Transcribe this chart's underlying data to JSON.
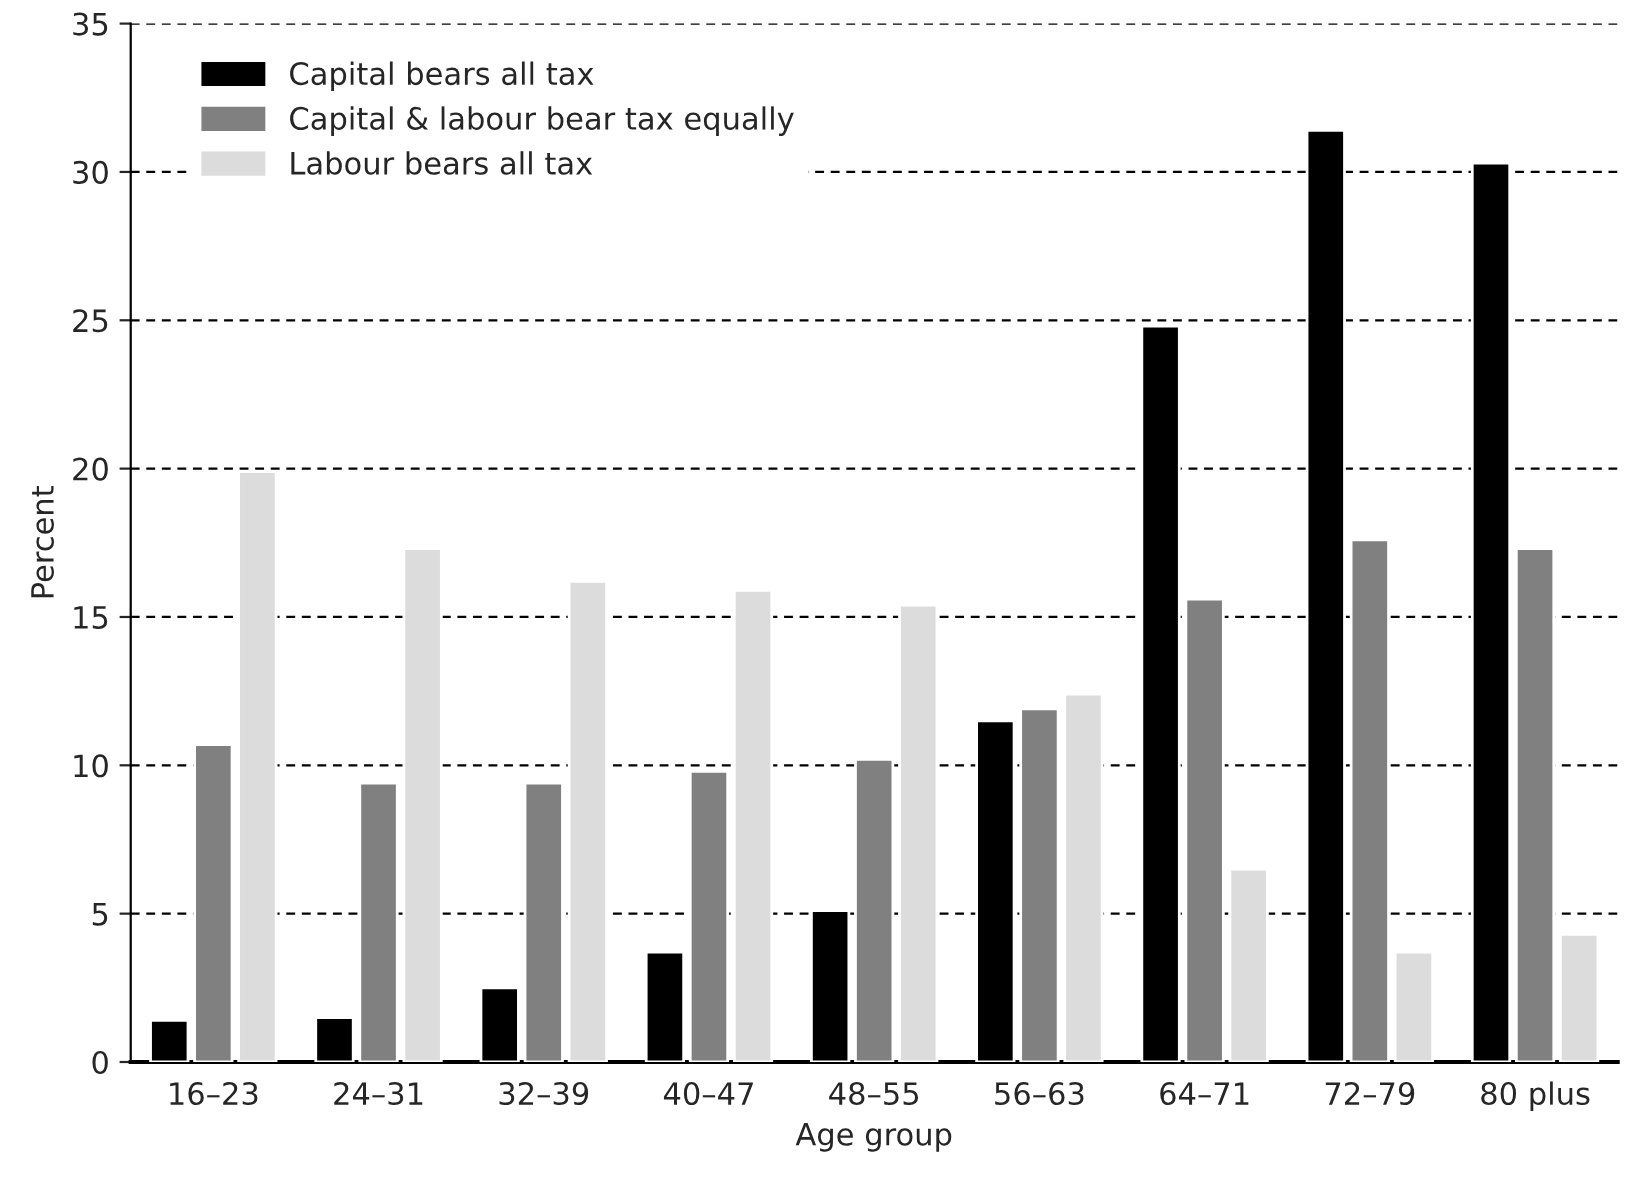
{
  "chart_data": {
    "type": "bar",
    "xlabel": "Age group",
    "ylabel": "Percent",
    "categories": [
      "16–23",
      "24–31",
      "32–39",
      "40–47",
      "48–55",
      "56–63",
      "64–71",
      "72–79",
      "80 plus"
    ],
    "series": [
      {
        "name": "Capital bears all tax",
        "color": "#000000",
        "values": [
          1.4,
          1.5,
          2.5,
          3.7,
          5.1,
          11.5,
          24.8,
          31.4,
          30.3
        ]
      },
      {
        "name": "Capital & labour bear tax equally",
        "color": "#808080",
        "values": [
          10.7,
          9.4,
          9.4,
          9.8,
          10.2,
          11.9,
          15.6,
          17.6,
          17.3
        ]
      },
      {
        "name": "Labour bears all tax",
        "color": "#dcdcdc",
        "values": [
          19.9,
          17.3,
          16.2,
          15.9,
          15.4,
          12.4,
          6.5,
          3.7,
          4.3
        ]
      }
    ],
    "ylim": [
      0,
      35
    ],
    "yticks": [
      0,
      5,
      10,
      15,
      20,
      25,
      30,
      35
    ],
    "grid": "y",
    "legend": "top left"
  }
}
